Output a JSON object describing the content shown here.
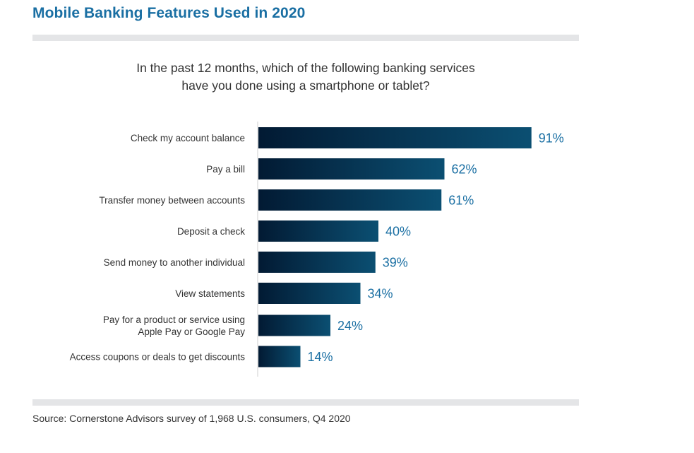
{
  "header": {
    "title": "Mobile Banking Features Used in 2020",
    "question_line1": "In the past 12 months, which of the following banking services",
    "question_line2": "have you done using a smartphone or tablet?"
  },
  "footer": {
    "source": "Source: Cornerstone Advisors survey of 1,968 U.S. consumers, Q4 2020"
  },
  "colors": {
    "title": "#1a6fa3",
    "value_label": "#1a6fa3",
    "bar_start": "#021a33",
    "bar_end": "#0b4f72",
    "rule": "#e4e5e7"
  },
  "chart_data": {
    "type": "bar",
    "orientation": "horizontal",
    "title": "Mobile Banking Features Used in 2020",
    "subtitle": "In the past 12 months, which of the following banking services have you done using a smartphone or tablet?",
    "xlabel": "",
    "ylabel": "",
    "unit": "%",
    "xlim": [
      0,
      100
    ],
    "grid": false,
    "legend": "none",
    "categories": [
      [
        "Check my account balance"
      ],
      [
        "Pay a bill"
      ],
      [
        "Transfer money between accounts"
      ],
      [
        "Deposit a check"
      ],
      [
        "Send money to another individual"
      ],
      [
        "View statements"
      ],
      [
        "Pay for a product or service using",
        "Apple Pay or Google Pay"
      ],
      [
        "Access coupons or deals to get discounts"
      ]
    ],
    "values": [
      91,
      62,
      61,
      40,
      39,
      34,
      24,
      14
    ],
    "value_labels": [
      "91%",
      "62%",
      "61%",
      "40%",
      "39%",
      "34%",
      "24%",
      "14%"
    ]
  }
}
